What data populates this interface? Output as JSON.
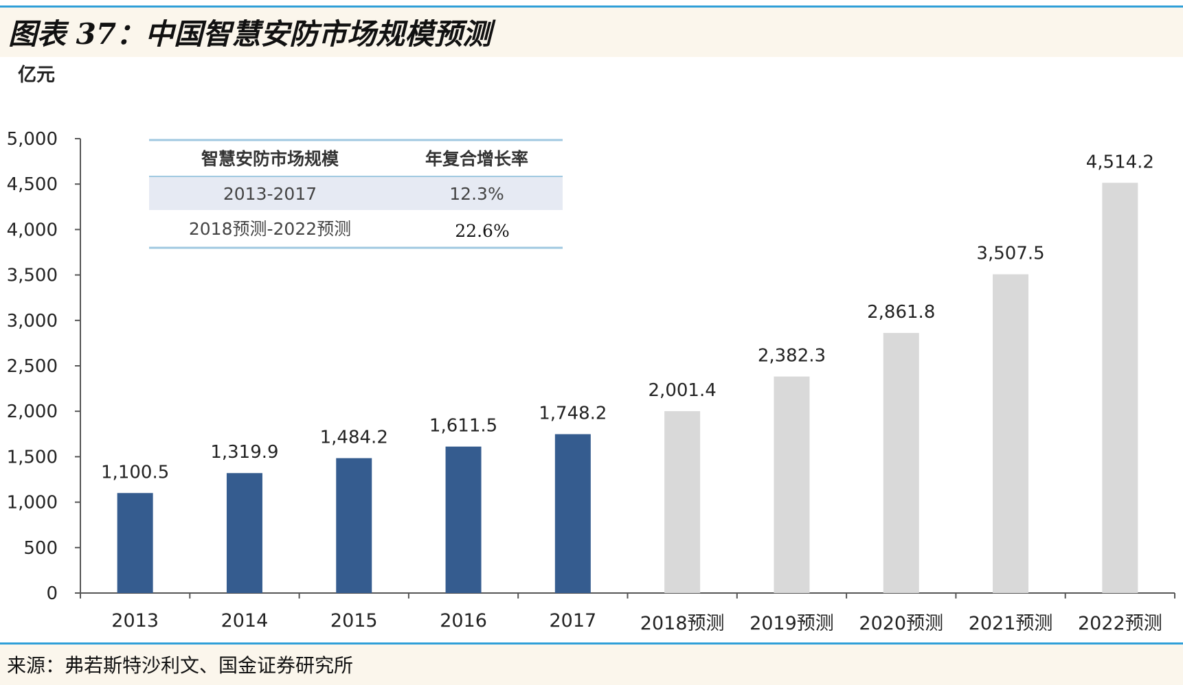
{
  "figure": {
    "title": "图表 37：中国智慧安防市场规模预测",
    "source": "来源：弗若斯特沙利文、国金证券研究所"
  },
  "colors": {
    "accent_rule": "#2f9fd8",
    "header_bg": "#fbf6ec",
    "actual_bar": "#355c8f",
    "forecast_bar": "#d9d9d9",
    "table_row_alt": "#e6eaf3",
    "table_rule": "#9fc8e0"
  },
  "table": {
    "headers": [
      "智慧安防市场规模",
      "年复合增长率"
    ],
    "rows": [
      [
        "2013-2017",
        "12.3%"
      ],
      [
        "2018预测-2022预测",
        "22.6%"
      ]
    ]
  },
  "chart_data": {
    "type": "bar",
    "ylabel": "亿元",
    "ylim": [
      0,
      5000
    ],
    "yticks": [
      "0",
      "500",
      "1,000",
      "1,500",
      "2,000",
      "2,500",
      "3,000",
      "3,500",
      "4,000",
      "4,500",
      "5,000"
    ],
    "grid": false,
    "categories": [
      "2013",
      "2014",
      "2015",
      "2016",
      "2017",
      "2018预测",
      "2019预测",
      "2020预测",
      "2021预测",
      "2022预测"
    ],
    "values": [
      1100.5,
      1319.9,
      1484.2,
      1611.5,
      1748.2,
      2001.4,
      2382.3,
      2861.8,
      3507.5,
      4514.2
    ],
    "value_labels": [
      "1,100.5",
      "1,319.9",
      "1,484.2",
      "1,611.5",
      "1,748.2",
      "2,001.4",
      "2,382.3",
      "2,861.8",
      "3,507.5",
      "4,514.2"
    ],
    "forecast": [
      false,
      false,
      false,
      false,
      false,
      true,
      true,
      true,
      true,
      true
    ]
  }
}
